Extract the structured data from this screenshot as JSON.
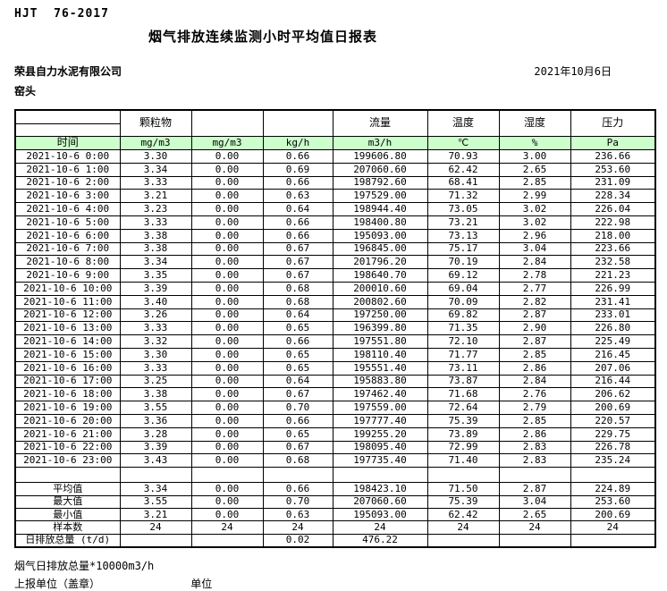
{
  "page": {
    "standard": "HJT  76-2017",
    "title": "烟气排放连续监测小时平均值日报表",
    "company": "荣县自力水泥有限公司",
    "date": "2021年10月6日",
    "location": "窑头"
  },
  "colors": {
    "header_green": "#ccffcc",
    "border": "#000000"
  },
  "table": {
    "group_headers": [
      "",
      "颗粒物",
      "",
      "",
      "流量",
      "温度",
      "湿度",
      "压力"
    ],
    "time_label": "时间",
    "units": [
      "mg/m3",
      "mg/m3",
      "kg/h",
      "m3/h",
      "℃",
      "%",
      "Pa"
    ],
    "data_rows": [
      {
        "time": "2021-10-6 0:00",
        "values": [
          "3.30",
          "0.00",
          "0.66",
          "199606.80",
          "70.93",
          "3.00",
          "236.66"
        ]
      },
      {
        "time": "2021-10-6 1:00",
        "values": [
          "3.34",
          "0.00",
          "0.69",
          "207060.60",
          "62.42",
          "2.65",
          "253.60"
        ]
      },
      {
        "time": "2021-10-6 2:00",
        "values": [
          "3.33",
          "0.00",
          "0.66",
          "198792.60",
          "68.41",
          "2.85",
          "231.09"
        ]
      },
      {
        "time": "2021-10-6 3:00",
        "values": [
          "3.21",
          "0.00",
          "0.63",
          "197529.00",
          "71.32",
          "2.99",
          "228.34"
        ]
      },
      {
        "time": "2021-10-6 4:00",
        "values": [
          "3.23",
          "0.00",
          "0.64",
          "198944.40",
          "73.05",
          "3.02",
          "226.04"
        ]
      },
      {
        "time": "2021-10-6 5:00",
        "values": [
          "3.33",
          "0.00",
          "0.66",
          "198400.80",
          "73.21",
          "3.02",
          "222.98"
        ]
      },
      {
        "time": "2021-10-6 6:00",
        "values": [
          "3.38",
          "0.00",
          "0.66",
          "195093.00",
          "73.13",
          "2.96",
          "218.00"
        ]
      },
      {
        "time": "2021-10-6 7:00",
        "values": [
          "3.38",
          "0.00",
          "0.67",
          "196845.00",
          "75.17",
          "3.04",
          "223.66"
        ]
      },
      {
        "time": "2021-10-6 8:00",
        "values": [
          "3.34",
          "0.00",
          "0.67",
          "201796.20",
          "70.19",
          "2.84",
          "232.58"
        ]
      },
      {
        "time": "2021-10-6 9:00",
        "values": [
          "3.35",
          "0.00",
          "0.67",
          "198640.70",
          "69.12",
          "2.78",
          "221.23"
        ]
      },
      {
        "time": "2021-10-6 10:00",
        "values": [
          "3.39",
          "0.00",
          "0.68",
          "200010.60",
          "69.04",
          "2.77",
          "226.99"
        ]
      },
      {
        "time": "2021-10-6 11:00",
        "values": [
          "3.40",
          "0.00",
          "0.68",
          "200802.60",
          "70.09",
          "2.82",
          "231.41"
        ]
      },
      {
        "time": "2021-10-6 12:00",
        "values": [
          "3.26",
          "0.00",
          "0.64",
          "197250.00",
          "69.82",
          "2.87",
          "233.01"
        ]
      },
      {
        "time": "2021-10-6 13:00",
        "values": [
          "3.33",
          "0.00",
          "0.65",
          "196399.80",
          "71.35",
          "2.90",
          "226.80"
        ]
      },
      {
        "time": "2021-10-6 14:00",
        "values": [
          "3.32",
          "0.00",
          "0.66",
          "197551.80",
          "72.10",
          "2.87",
          "225.49"
        ]
      },
      {
        "time": "2021-10-6 15:00",
        "values": [
          "3.30",
          "0.00",
          "0.65",
          "198110.40",
          "71.77",
          "2.85",
          "216.45"
        ]
      },
      {
        "time": "2021-10-6 16:00",
        "values": [
          "3.33",
          "0.00",
          "0.65",
          "195551.40",
          "73.11",
          "2.86",
          "207.06"
        ]
      },
      {
        "time": "2021-10-6 17:00",
        "values": [
          "3.25",
          "0.00",
          "0.64",
          "195883.80",
          "73.87",
          "2.84",
          "216.44"
        ]
      },
      {
        "time": "2021-10-6 18:00",
        "values": [
          "3.38",
          "0.00",
          "0.67",
          "197462.40",
          "71.68",
          "2.76",
          "206.62"
        ]
      },
      {
        "time": "2021-10-6 19:00",
        "values": [
          "3.55",
          "0.00",
          "0.70",
          "197559.00",
          "72.64",
          "2.79",
          "200.69"
        ]
      },
      {
        "time": "2021-10-6 20:00",
        "values": [
          "3.36",
          "0.00",
          "0.66",
          "197777.40",
          "75.39",
          "2.85",
          "220.57"
        ]
      },
      {
        "time": "2021-10-6 21:00",
        "values": [
          "3.28",
          "0.00",
          "0.65",
          "199255.20",
          "73.89",
          "2.86",
          "229.75"
        ]
      },
      {
        "time": "2021-10-6 22:00",
        "values": [
          "3.39",
          "0.00",
          "0.67",
          "198095.40",
          "72.99",
          "2.83",
          "226.78"
        ]
      },
      {
        "time": "2021-10-6 23:00",
        "values": [
          "3.43",
          "0.00",
          "0.68",
          "197735.40",
          "71.40",
          "2.83",
          "235.24"
        ]
      }
    ],
    "summary_rows": [
      {
        "label": "平均值",
        "values": [
          "3.34",
          "0.00",
          "0.66",
          "198423.10",
          "71.50",
          "2.87",
          "224.89"
        ]
      },
      {
        "label": "最大值",
        "values": [
          "3.55",
          "0.00",
          "0.70",
          "207060.60",
          "75.39",
          "3.04",
          "253.60"
        ]
      },
      {
        "label": "最小值",
        "values": [
          "3.21",
          "0.00",
          "0.63",
          "195093.00",
          "62.42",
          "2.65",
          "200.69"
        ]
      },
      {
        "label": "样本数",
        "values": [
          "24",
          "24",
          "24",
          "24",
          "24",
          "24",
          "24"
        ]
      },
      {
        "label": "日排放总量 (t/d)",
        "values": [
          "",
          "",
          "0.02",
          "476.22",
          "",
          "",
          ""
        ]
      }
    ]
  },
  "footer": {
    "note": "烟气日排放总量*10000m3/h",
    "report_unit_label": "上报单位（盖章）",
    "unit_label": "单位"
  }
}
